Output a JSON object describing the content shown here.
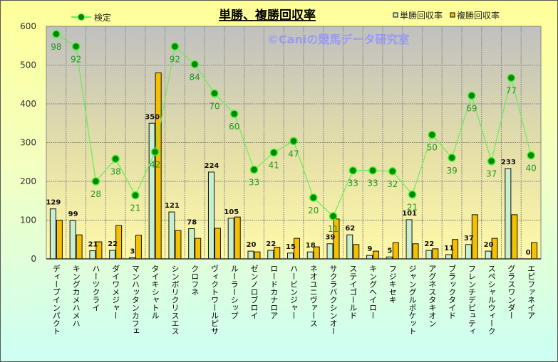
{
  "chart_data": {
    "type": "bar",
    "title": "単勝、複勝回収率",
    "watermark": "©Caniの競馬データ研究室",
    "xlabel": "",
    "ylabel": "",
    "ylim": [
      0,
      600
    ],
    "yticks": [
      "0",
      "100",
      "200",
      "300",
      "400",
      "500",
      "600"
    ],
    "grid": true,
    "legend": {
      "line_position": "top-left",
      "bars_position": "top-right"
    },
    "categories": [
      "ディープインパクト",
      "キングカメハメハ",
      "ハーツクライ",
      "ダイワメジャー",
      "マンハッタンカフェ",
      "タイキシャトル",
      "シンボリクリスエス",
      "クロフネ",
      "ヴィクトワールピサ",
      "ルーラーシップ",
      "ゼンノロブロイ",
      "ロードカナロア",
      "ハービンジャー",
      "ネオユニヴァース",
      "サクラバクシンオー",
      "ステイゴールド",
      "キングヘイロー",
      "フジキセキ",
      "ジャングルポケット",
      "アグネスタキオン",
      "ブラックタイド",
      "フレンチデピュティ",
      "スペシャルウィーク",
      "グラスワンダー",
      "エピファネイア"
    ],
    "series": [
      {
        "name": "単勝回収率",
        "type": "bar",
        "color": "#c8f0d0",
        "values": [
          129,
          99,
          21,
          22,
          3,
          350,
          121,
          78,
          224,
          105,
          20,
          22,
          15,
          18,
          39,
          62,
          9,
          5,
          101,
          22,
          11,
          37,
          20,
          233,
          0
        ],
        "labels": [
          "129",
          "99",
          "21",
          "22",
          "3",
          "350",
          "121",
          "78",
          "224",
          "105",
          "20",
          "22",
          "15",
          "18",
          "39",
          "62",
          "9",
          "5",
          "101",
          "22",
          "11",
          "37",
          "20",
          "233",
          "0"
        ]
      },
      {
        "name": "複勝回収率",
        "type": "bar",
        "color": "#f5c000",
        "values": [
          100,
          62,
          44,
          86,
          61,
          480,
          73,
          53,
          79,
          108,
          18,
          30,
          53,
          31,
          103,
          37,
          20,
          42,
          39,
          26,
          50,
          114,
          53,
          114,
          42
        ]
      },
      {
        "name": "検定",
        "type": "line",
        "color": "#66ee55",
        "marker_color": "#008800",
        "values": [
          580,
          548,
          200,
          258,
          164,
          276,
          548,
          502,
          427,
          374,
          230,
          274,
          304,
          158,
          110,
          228,
          228,
          226,
          166,
          320,
          261,
          421,
          252,
          467,
          267
        ],
        "labels": [
          "98",
          "92",
          "28",
          "38",
          "21",
          "42",
          "92",
          "84",
          "70",
          "60",
          "33",
          "41",
          "47",
          "20",
          "11",
          "33",
          "33",
          "32",
          "21",
          "50",
          "39",
          "69",
          "37",
          "77",
          "40"
        ]
      }
    ]
  }
}
